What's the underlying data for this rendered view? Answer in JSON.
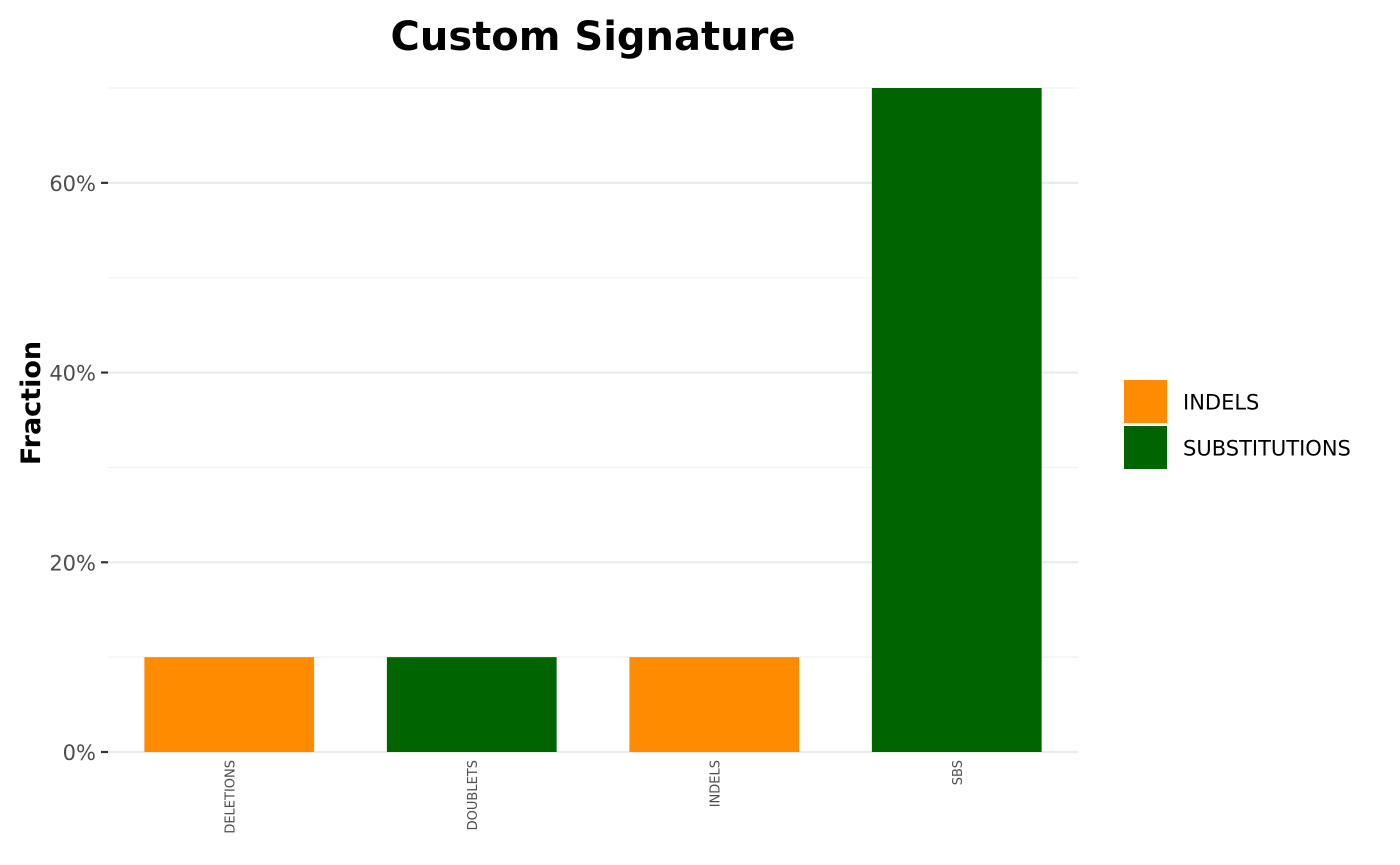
{
  "chart_data": {
    "type": "bar",
    "title": "Custom Signature",
    "xlabel": "",
    "ylabel": "Fraction",
    "categories": [
      "DELETIONS",
      "DOUBLETS",
      "INDELS",
      "SBS"
    ],
    "values": [
      0.1,
      0.1,
      0.1,
      0.7
    ],
    "groups": [
      "INDELS",
      "SUBSTITUTIONS",
      "INDELS",
      "SUBSTITUTIONS"
    ],
    "ylim": [
      0,
      0.7
    ],
    "yticks": [
      0,
      0.2,
      0.4,
      0.6
    ],
    "ytick_labels": [
      "0%",
      "20%",
      "40%",
      "60%"
    ],
    "grid": true,
    "legend": {
      "position": "right",
      "entries": [
        {
          "label": "INDELS",
          "color": "#ff8c00"
        },
        {
          "label": "SUBSTITUTIONS",
          "color": "#006400"
        }
      ]
    }
  }
}
